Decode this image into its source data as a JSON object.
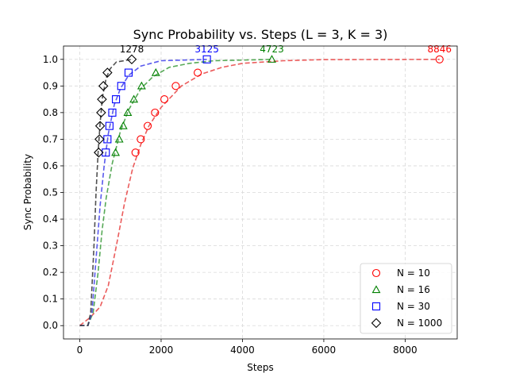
{
  "chart_data": {
    "type": "scatter",
    "title": "Sync Probability vs. Steps (L = 3, K = 3)",
    "xlabel": "Steps",
    "ylabel": "Sync Probability",
    "xlim": [
      -400,
      9280
    ],
    "ylim": [
      -0.05,
      1.05
    ],
    "xticks": [
      0,
      2000,
      4000,
      6000,
      8000
    ],
    "xtick_labels": [
      "0",
      "2000",
      "4000",
      "6000",
      "8000"
    ],
    "yticks": [
      0.0,
      0.1,
      0.2,
      0.3,
      0.4,
      0.5,
      0.6,
      0.7,
      0.8,
      0.9,
      1.0
    ],
    "ytick_labels": [
      "0.0",
      "0.1",
      "0.2",
      "0.3",
      "0.4",
      "0.5",
      "0.6",
      "0.7",
      "0.8",
      "0.9",
      "1.0"
    ],
    "grid": true,
    "legend_position": "lower right",
    "series": [
      {
        "name": "N = 10",
        "marker": "circle",
        "color": "#ff0000",
        "line_color": "#e8403f",
        "points": [
          [
            1370,
            0.65
          ],
          [
            1500,
            0.7
          ],
          [
            1670,
            0.75
          ],
          [
            1850,
            0.8
          ],
          [
            2080,
            0.85
          ],
          [
            2360,
            0.9
          ],
          [
            2900,
            0.95
          ],
          [
            8846,
            1.0
          ]
        ],
        "fit": [
          [
            0,
            0.0
          ],
          [
            250,
            0.03
          ],
          [
            500,
            0.07
          ],
          [
            700,
            0.15
          ],
          [
            900,
            0.3
          ],
          [
            1100,
            0.46
          ],
          [
            1300,
            0.59
          ],
          [
            1500,
            0.68
          ],
          [
            1700,
            0.75
          ],
          [
            2000,
            0.82
          ],
          [
            2500,
            0.9
          ],
          [
            3000,
            0.945
          ],
          [
            3500,
            0.97
          ],
          [
            4000,
            0.985
          ],
          [
            5000,
            0.995
          ],
          [
            6000,
            0.999
          ],
          [
            8846,
            1.0
          ]
        ],
        "annotation": "8846"
      },
      {
        "name": "N = 16",
        "marker": "triangle",
        "color": "#008000",
        "line_color": "#3a9a3a",
        "points": [
          [
            880,
            0.65
          ],
          [
            970,
            0.7
          ],
          [
            1070,
            0.75
          ],
          [
            1180,
            0.8
          ],
          [
            1330,
            0.85
          ],
          [
            1520,
            0.9
          ],
          [
            1870,
            0.95
          ],
          [
            4723,
            1.0
          ]
        ],
        "fit": [
          [
            0,
            0.0
          ],
          [
            200,
            0.0
          ],
          [
            330,
            0.05
          ],
          [
            450,
            0.2
          ],
          [
            550,
            0.36
          ],
          [
            650,
            0.48
          ],
          [
            800,
            0.61
          ],
          [
            1000,
            0.73
          ],
          [
            1200,
            0.81
          ],
          [
            1500,
            0.89
          ],
          [
            1800,
            0.935
          ],
          [
            2200,
            0.97
          ],
          [
            2700,
            0.985
          ],
          [
            3300,
            0.995
          ],
          [
            4723,
            1.0
          ]
        ],
        "annotation": "4723"
      },
      {
        "name": "N = 30",
        "marker": "square",
        "color": "#0000ff",
        "line_color": "#3d3dea",
        "points": [
          [
            640,
            0.65
          ],
          [
            680,
            0.7
          ],
          [
            730,
            0.75
          ],
          [
            800,
            0.8
          ],
          [
            890,
            0.85
          ],
          [
            1020,
            0.9
          ],
          [
            1200,
            0.95
          ],
          [
            3125,
            1.0
          ]
        ],
        "fit": [
          [
            0,
            0.0
          ],
          [
            200,
            0.0
          ],
          [
            300,
            0.05
          ],
          [
            400,
            0.25
          ],
          [
            500,
            0.45
          ],
          [
            600,
            0.6
          ],
          [
            700,
            0.72
          ],
          [
            850,
            0.83
          ],
          [
            1000,
            0.89
          ],
          [
            1200,
            0.94
          ],
          [
            1500,
            0.975
          ],
          [
            2000,
            0.995
          ],
          [
            3125,
            1.0
          ]
        ],
        "annotation": "3125"
      },
      {
        "name": "N = 1000",
        "marker": "diamond",
        "color": "#000000",
        "line_color": "#333333",
        "points": [
          [
            465,
            0.65
          ],
          [
            485,
            0.7
          ],
          [
            500,
            0.75
          ],
          [
            525,
            0.8
          ],
          [
            545,
            0.85
          ],
          [
            580,
            0.9
          ],
          [
            680,
            0.95
          ],
          [
            1278,
            1.0
          ]
        ],
        "fit": [
          [
            0,
            0.0
          ],
          [
            200,
            0.0
          ],
          [
            270,
            0.05
          ],
          [
            350,
            0.3
          ],
          [
            400,
            0.5
          ],
          [
            450,
            0.65
          ],
          [
            500,
            0.76
          ],
          [
            560,
            0.86
          ],
          [
            650,
            0.93
          ],
          [
            750,
            0.965
          ],
          [
            900,
            0.99
          ],
          [
            1278,
            1.0
          ]
        ],
        "annotation": "1278"
      }
    ]
  }
}
